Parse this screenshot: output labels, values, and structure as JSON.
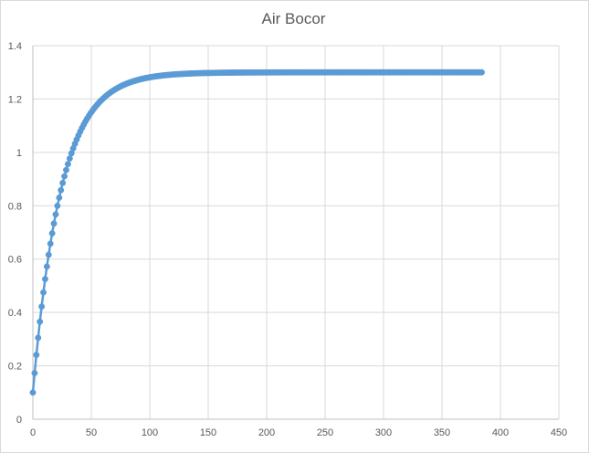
{
  "chart_data": {
    "type": "scatter",
    "title": "Air Bocor",
    "xlabel": "",
    "ylabel": "",
    "xlim": [
      0,
      450
    ],
    "ylim": [
      0,
      1.4
    ],
    "x_ticks": [
      0,
      50,
      100,
      150,
      200,
      250,
      300,
      350,
      400,
      450
    ],
    "y_ticks": [
      0,
      0.2,
      0.4,
      0.6,
      0.8,
      1,
      1.2,
      1.4
    ],
    "grid": true,
    "legend": "none",
    "markers": true,
    "line": true,
    "color": "#5b9bd5",
    "series": [
      {
        "model": "saturating-exponential",
        "x_start": 0,
        "x_end": 385,
        "x_step": 1.5,
        "y_start": 0.1,
        "y_max": 1.3,
        "tau": 24,
        "points_sample": [
          [
            0,
            0.1
          ],
          [
            1.5,
            0.17
          ],
          [
            3,
            0.24
          ],
          [
            6,
            0.37
          ],
          [
            9,
            0.5
          ],
          [
            12,
            0.59
          ],
          [
            15,
            0.66
          ],
          [
            20,
            0.78
          ],
          [
            25,
            0.88
          ],
          [
            30,
            0.96
          ],
          [
            40,
            1.07
          ],
          [
            50,
            1.16
          ],
          [
            60,
            1.21
          ],
          [
            75,
            1.25
          ],
          [
            100,
            1.28
          ],
          [
            150,
            1.295
          ],
          [
            200,
            1.3
          ],
          [
            300,
            1.3
          ],
          [
            385,
            1.3
          ]
        ]
      }
    ]
  }
}
